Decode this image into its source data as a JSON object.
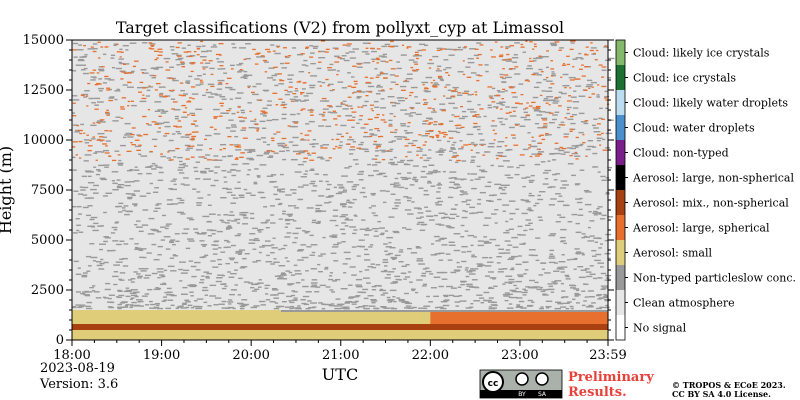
{
  "chart_data": {
    "type": "heatmap",
    "title": "Target classifications (V2) from pollyxt_cyp at Limassol",
    "xlabel": "UTC",
    "ylabel": "Height (m)",
    "xlim": [
      "18:00",
      "23:59"
    ],
    "ylim": [
      0,
      15000
    ],
    "xticks": [
      "18:00",
      "19:00",
      "20:00",
      "21:00",
      "22:00",
      "23:00",
      "23:59"
    ],
    "yticks": [
      0,
      2500,
      5000,
      7500,
      10000,
      12500,
      15000
    ],
    "classes": [
      {
        "label": "No signal",
        "color": "#ffffff"
      },
      {
        "label": "Clean atmosphere",
        "color": "#e6e6e6"
      },
      {
        "label": "Non-typed particleslow conc.",
        "color": "#999999"
      },
      {
        "label": "Aerosol: small",
        "color": "#e0cd7a"
      },
      {
        "label": "Aerosol: large, spherical",
        "color": "#e8702e"
      },
      {
        "label": "Aerosol: mix., non-spherical",
        "color": "#a8400f"
      },
      {
        "label": "Aerosol: large, non-spherical",
        "color": "#000000"
      },
      {
        "label": "Cloud: non-typed",
        "color": "#7a1f8a"
      },
      {
        "label": "Cloud: water droplets",
        "color": "#4a90cc"
      },
      {
        "label": "Cloud: likely water droplets",
        "color": "#bcdcf2"
      },
      {
        "label": "Cloud: ice crystals",
        "color": "#1e7033"
      },
      {
        "label": "Cloud: likely ice crystals",
        "color": "#84b86a"
      }
    ],
    "layers": [
      {
        "class": "Aerosol: small",
        "from": 0,
        "to": 1500
      },
      {
        "class": "Aerosol: mix., non-spherical",
        "from": 500,
        "to": 800
      },
      {
        "class": "Aerosol: large, spherical",
        "from": 800,
        "to": 1400,
        "time_from": "22:00",
        "time_to": "23:59"
      },
      {
        "class": "Non-typed particleslow conc.",
        "from": 1400,
        "to": 2600,
        "time_from": "20:20",
        "time_to": "23:59"
      },
      {
        "class": "Clean atmosphere",
        "from": 1500,
        "to": 15000
      },
      {
        "class": "Cloud: likely ice crystals",
        "from": 9000,
        "to": 15000,
        "note": "scattered"
      }
    ]
  },
  "meta": {
    "date": "2023-08-19",
    "version": "Version: 3.6",
    "license_badge": [
      "cc",
      "BY",
      "SA"
    ],
    "preliminary_line1": "Preliminary",
    "preliminary_line2": "Results.",
    "copyright_line1": "© TROPOS & ECoE 2023.",
    "copyright_line2": "CC BY SA 4.0 License."
  }
}
